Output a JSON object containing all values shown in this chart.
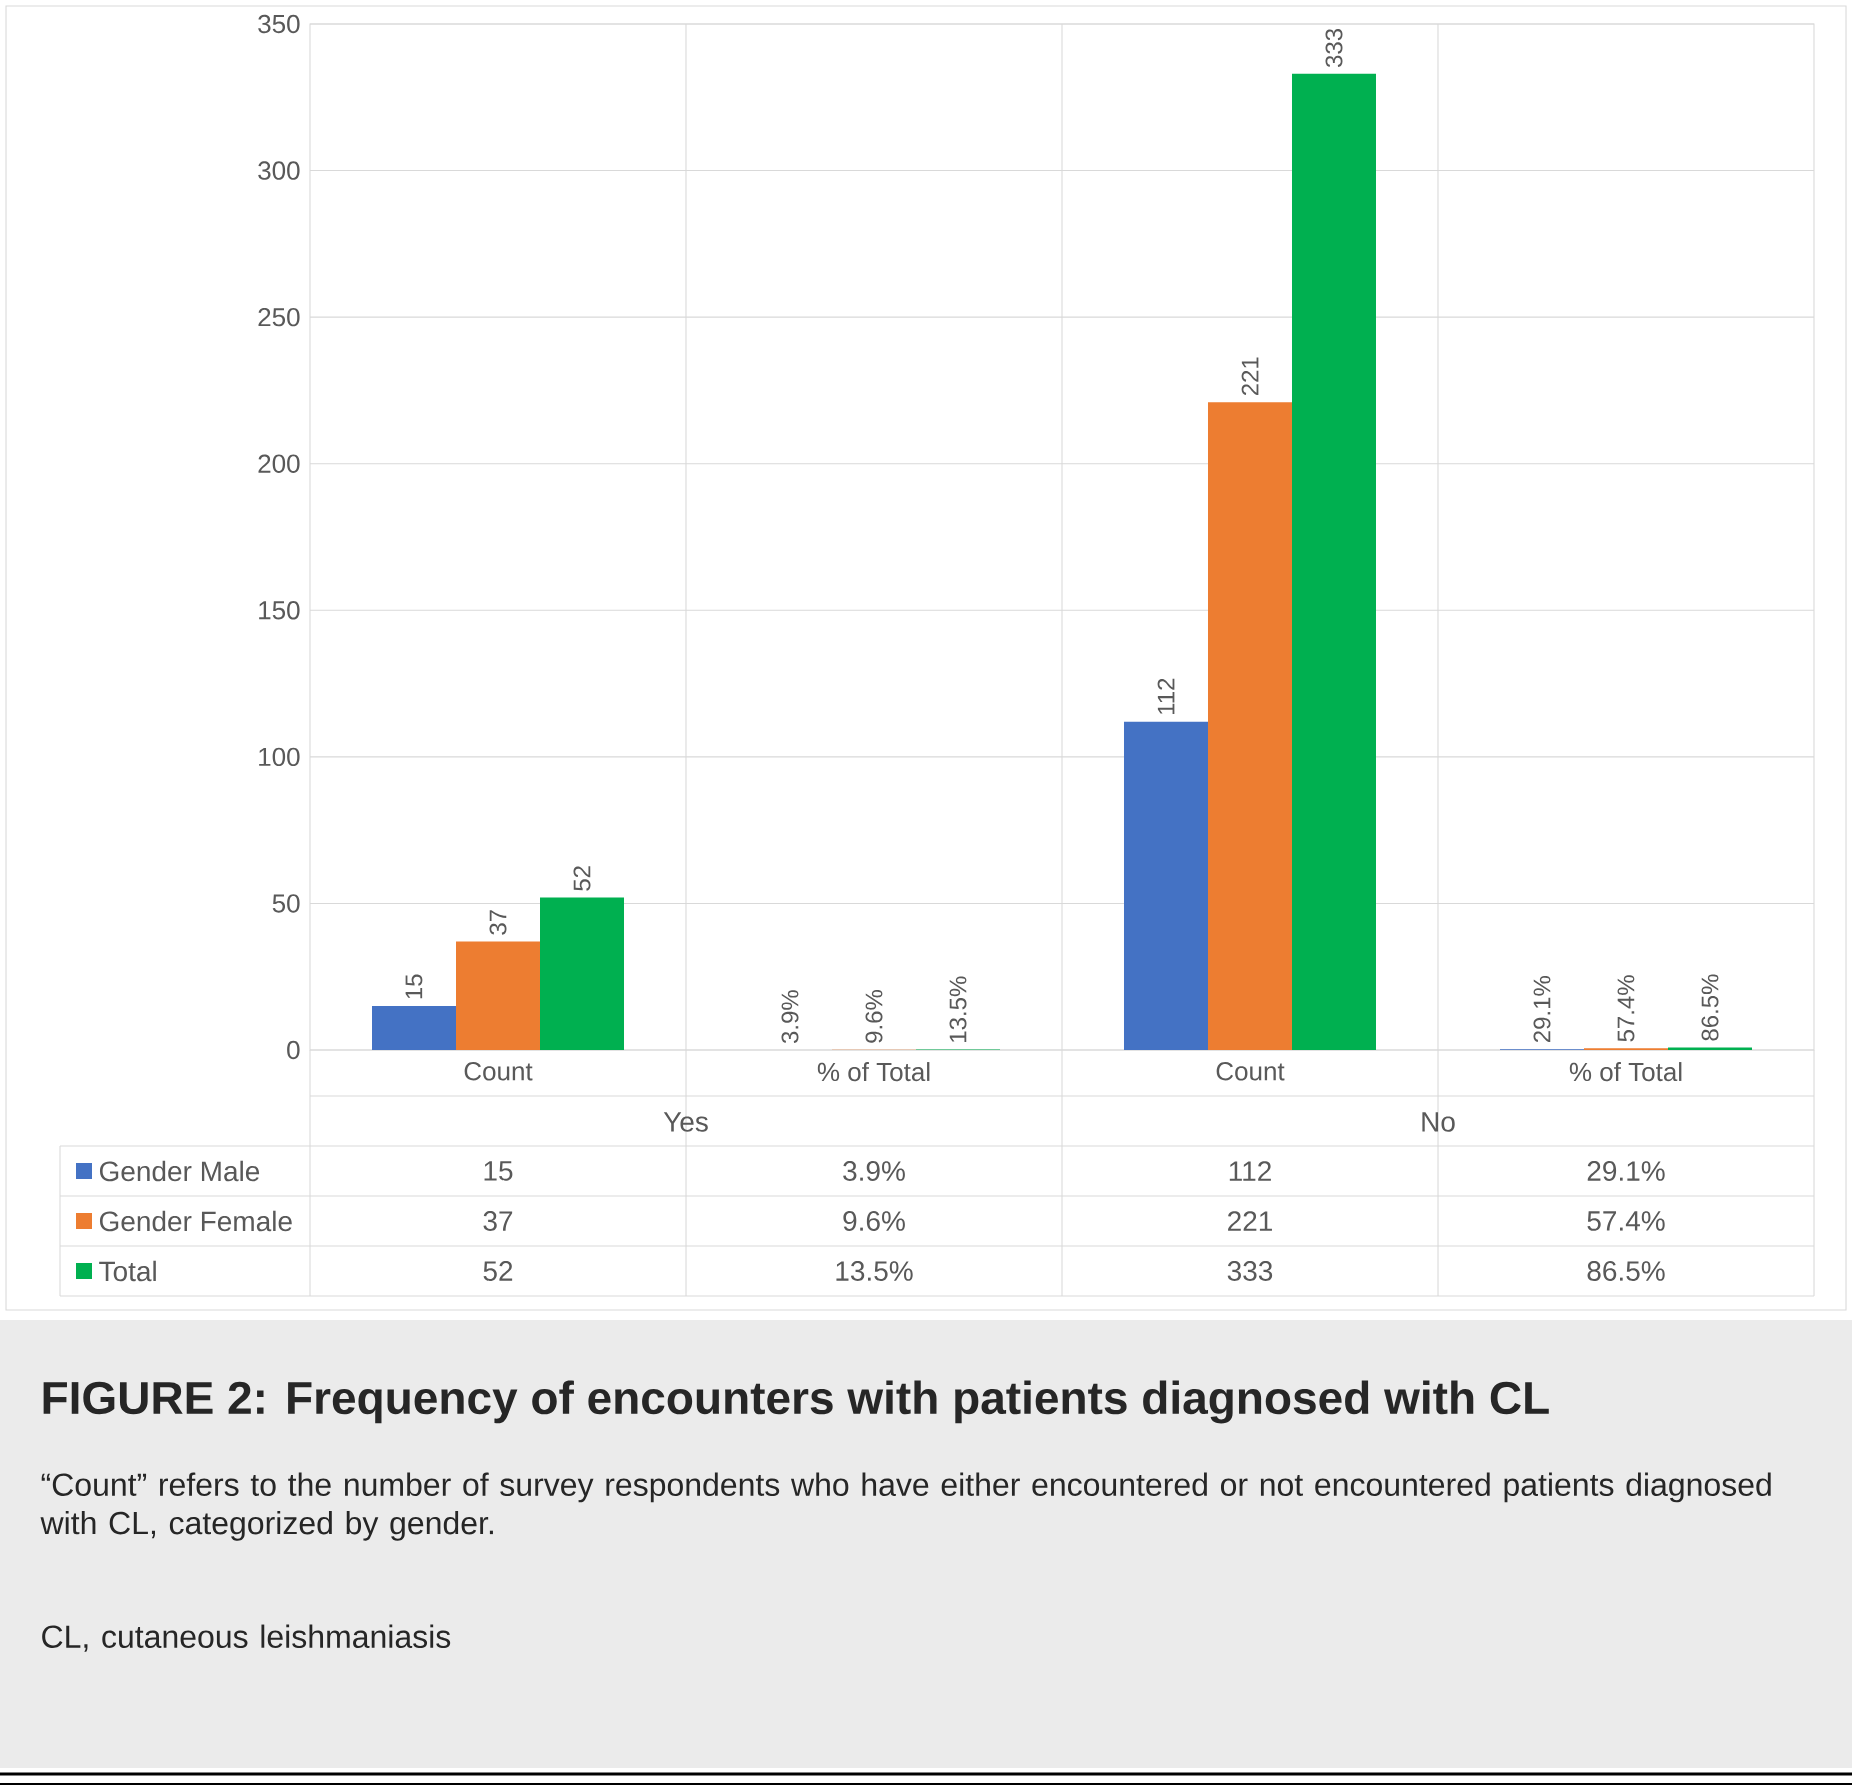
{
  "chart_data": {
    "type": "bar",
    "title": "FIGURE 2: Frequency of encounters with patients diagnosed with CL",
    "categories": [
      "Count",
      "% of Total",
      "Count",
      "% of Total"
    ],
    "series": [
      {
        "name": "Gender Male",
        "color": "#4472c4",
        "values": [
          15,
          0.039,
          112,
          0.291
        ],
        "value_labels": [
          "15",
          "3.9%",
          "112",
          "29.1%"
        ]
      },
      {
        "name": "Gender Female",
        "color": "#ed7d31",
        "values": [
          37,
          0.096,
          221,
          0.574
        ],
        "value_labels": [
          "37",
          "9.6%",
          "221",
          "57.4%"
        ]
      },
      {
        "name": "Total",
        "color": "#00b050",
        "values": [
          52,
          0.135,
          333,
          0.865
        ],
        "value_labels": [
          "52",
          "13.5%",
          "333",
          "86.5%"
        ]
      }
    ],
    "ylim": [
      0,
      350
    ],
    "yticks": [
      0,
      50,
      100,
      150,
      200,
      250,
      300,
      350
    ],
    "grid": "y",
    "legend": "bottom",
    "annotations": [
      "Yes",
      "No",
      "“Count” refers to the number of survey respondents who have either encountered or not encountered patients diagnosed with CL, categorized by gender.",
      "CL, cutaneous leishmaniasis"
    ]
  }
}
